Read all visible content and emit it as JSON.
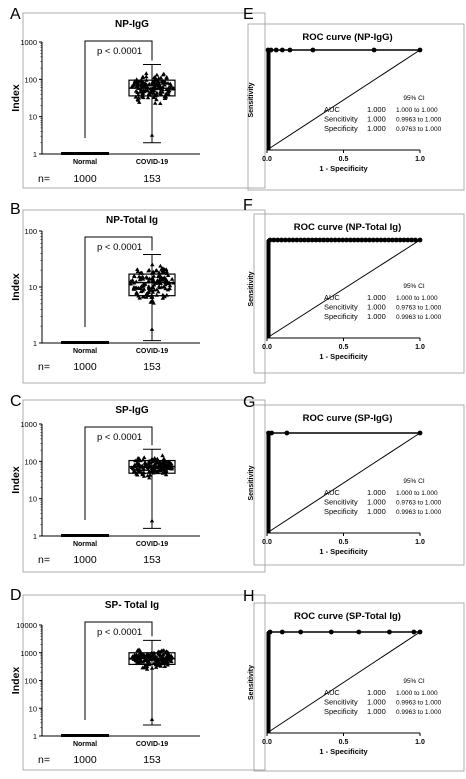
{
  "chart_data": [
    {
      "panel": "A",
      "type": "scatter",
      "title": "NP-IgG",
      "ylabel": "Index",
      "yscale": "log",
      "ylim": [
        1,
        1000
      ],
      "yticks": [
        "1",
        "10",
        "100",
        "1000"
      ],
      "categories": [
        "Normal",
        "COVID-19"
      ],
      "n_label": "n=",
      "n": [
        "1000",
        "153"
      ],
      "p_label": "p < 0.0001",
      "box": {
        "min": 2,
        "q1": 36,
        "median": 58,
        "q3": 95,
        "max": 250
      }
    },
    {
      "panel": "B",
      "type": "scatter",
      "title": "NP-Total Ig",
      "ylabel": "Index",
      "yscale": "log",
      "ylim": [
        1,
        100
      ],
      "yticks": [
        "1",
        "10",
        "100"
      ],
      "categories": [
        "Normal",
        "COVID-19"
      ],
      "n_label": "n=",
      "n": [
        "1000",
        "153"
      ],
      "p_label": "p < 0.0001",
      "box": {
        "min": 1.1,
        "q1": 7,
        "median": 12,
        "q3": 17,
        "max": 38
      }
    },
    {
      "panel": "C",
      "type": "scatter",
      "title": "SP-IgG",
      "ylabel": "Index",
      "yscale": "log",
      "ylim": [
        1,
        1000
      ],
      "yticks": [
        "1",
        "10",
        "100",
        "1000"
      ],
      "categories": [
        "Normal",
        "COVID-19"
      ],
      "n_label": "n=",
      "n": [
        "1000",
        "153"
      ],
      "p_label": "p < 0.0001",
      "box": {
        "min": 1.6,
        "q1": 48,
        "median": 72,
        "q3": 105,
        "max": 210
      }
    },
    {
      "panel": "D",
      "type": "scatter",
      "title": "SP- Total Ig",
      "ylabel": "Index",
      "yscale": "log",
      "ylim": [
        1,
        10000
      ],
      "yticks": [
        "1",
        "10",
        "100",
        "1000",
        "10000"
      ],
      "categories": [
        "Normal",
        "COVID-19"
      ],
      "n_label": "n=",
      "n": [
        "1000",
        "153"
      ],
      "p_label": "p < 0.0001",
      "box": {
        "min": 2.5,
        "q1": 380,
        "median": 620,
        "q3": 1000,
        "max": 2800
      }
    },
    {
      "panel": "E",
      "type": "line",
      "title": "ROC curve (NP-IgG)",
      "xlabel": "1 - Specificity",
      "ylabel": "Sensitivity",
      "xlim": [
        0,
        1
      ],
      "ylim": [
        0,
        1
      ],
      "xticks": [
        "0.0",
        "0.5",
        "1.0"
      ],
      "ci_header": "95% CI",
      "stats": [
        {
          "label": "AUC",
          "value": "1.000",
          "ci": "1.000 to 1.000"
        },
        {
          "label": "Sencitivity",
          "value": "1.000",
          "ci": "0.9963 to 1.000"
        },
        {
          "label": "Specificity",
          "value": "1.000",
          "ci": "0.9763 to 1.000"
        }
      ],
      "roc_points": [
        [
          0.007,
          1
        ],
        [
          0.026,
          1
        ],
        [
          0.06,
          1
        ],
        [
          0.1,
          1
        ],
        [
          0.15,
          1
        ],
        [
          0.3,
          1
        ],
        [
          0.7,
          1
        ],
        [
          1,
          1
        ]
      ]
    },
    {
      "panel": "F",
      "type": "line",
      "title": "ROC curve (NP-Total Ig)",
      "xlabel": "1 - Specificity",
      "ylabel": "Sensitivity",
      "xlim": [
        0,
        1
      ],
      "ylim": [
        0,
        1
      ],
      "xticks": [
        "0.0",
        "0.5",
        "1.0"
      ],
      "ci_header": "95% CI",
      "stats": [
        {
          "label": "AUC",
          "value": "1.000",
          "ci": "1.000 to 1.000"
        },
        {
          "label": "Sencitivity",
          "value": "1.000",
          "ci": "0.9763 to 1.000"
        },
        {
          "label": "Specificity",
          "value": "1.000",
          "ci": "0.9963 to 1.000"
        }
      ],
      "roc_points": [
        [
          0.02,
          1
        ],
        [
          0.045,
          1
        ],
        [
          0.07,
          1
        ],
        [
          0.095,
          1
        ],
        [
          0.12,
          1
        ],
        [
          0.145,
          1
        ],
        [
          0.17,
          1
        ],
        [
          0.195,
          1
        ],
        [
          0.22,
          1
        ],
        [
          0.245,
          1
        ],
        [
          0.27,
          1
        ],
        [
          0.295,
          1
        ],
        [
          0.32,
          1
        ],
        [
          0.345,
          1
        ],
        [
          0.37,
          1
        ],
        [
          0.395,
          1
        ],
        [
          0.42,
          1
        ],
        [
          0.445,
          1
        ],
        [
          0.47,
          1
        ],
        [
          0.495,
          1
        ],
        [
          0.52,
          1
        ],
        [
          0.545,
          1
        ],
        [
          0.57,
          1
        ],
        [
          0.595,
          1
        ],
        [
          0.62,
          1
        ],
        [
          0.645,
          1
        ],
        [
          0.67,
          1
        ],
        [
          0.695,
          1
        ],
        [
          0.72,
          1
        ],
        [
          0.745,
          1
        ],
        [
          0.77,
          1
        ],
        [
          0.795,
          1
        ],
        [
          0.82,
          1
        ],
        [
          0.845,
          1
        ],
        [
          0.87,
          1
        ],
        [
          0.895,
          1
        ],
        [
          0.92,
          1
        ],
        [
          0.945,
          1
        ],
        [
          0.97,
          1
        ],
        [
          1,
          1
        ]
      ]
    },
    {
      "panel": "G",
      "type": "line",
      "title": "ROC curve (SP-IgG)",
      "xlabel": "1 - Specificity",
      "ylabel": "Sensitivity",
      "xlim": [
        0,
        1
      ],
      "ylim": [
        0,
        1
      ],
      "xticks": [
        "0.0",
        "0.5",
        "1.0"
      ],
      "ci_header": "95% CI",
      "stats": [
        {
          "label": "AUC",
          "value": "1.000",
          "ci": "1.000 to 1.000"
        },
        {
          "label": "Sencitivity",
          "value": "1.000",
          "ci": "0.9763 to 1.000"
        },
        {
          "label": "Specificity",
          "value": "1.000",
          "ci": "0.9963 to 1.000"
        }
      ],
      "roc_points": [
        [
          0.01,
          1
        ],
        [
          0.03,
          1
        ],
        [
          0.13,
          1
        ],
        [
          1,
          1
        ]
      ]
    },
    {
      "panel": "H",
      "type": "line",
      "title": "ROC curve (SP-Total Ig)",
      "xlabel": "1 - Specificity",
      "ylabel": "Sensitivity",
      "xlim": [
        0,
        1
      ],
      "ylim": [
        0,
        1
      ],
      "xticks": [
        "0.0",
        "0.5",
        "1.0"
      ],
      "ci_header": "95% CI",
      "stats": [
        {
          "label": "AUC",
          "value": "1.000",
          "ci": "1.000 to 1.000"
        },
        {
          "label": "Sencitivity",
          "value": "1.000",
          "ci": "0.9963 to 1.000"
        },
        {
          "label": "Specificity",
          "value": "1.000",
          "ci": "0.9963 to 1.000"
        }
      ],
      "roc_points": [
        [
          0.02,
          1
        ],
        [
          0.1,
          1
        ],
        [
          0.22,
          1
        ],
        [
          0.42,
          1
        ],
        [
          0.6,
          1
        ],
        [
          0.8,
          1
        ],
        [
          0.96,
          1
        ],
        [
          1,
          1
        ]
      ]
    }
  ]
}
